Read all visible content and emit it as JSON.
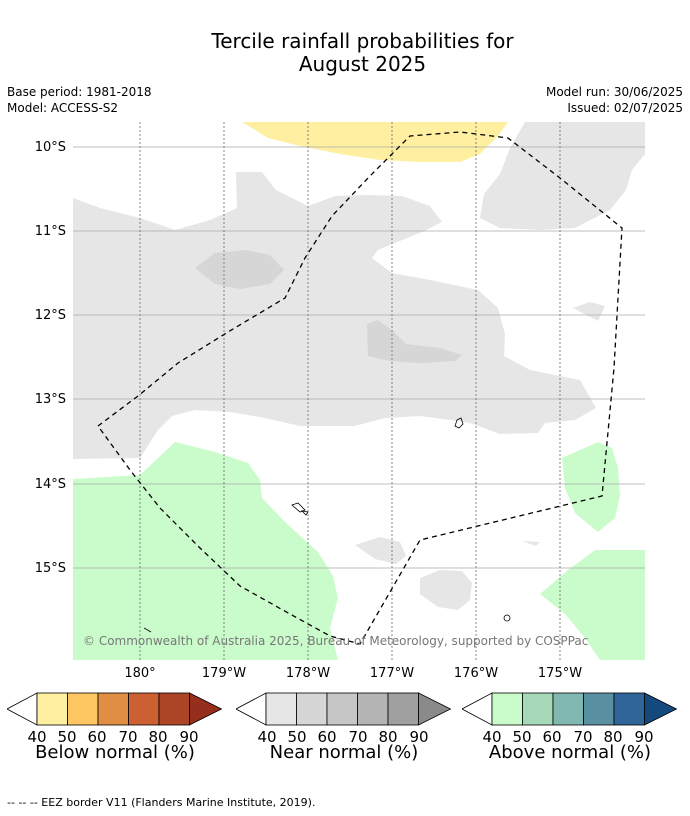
{
  "header": {
    "title_line1": "Tercile rainfall probabilities for",
    "title_line2": "August 2025",
    "base_period": "Base period: 1981-2018",
    "model": "Model: ACCESS-S2",
    "model_run": "Model run: 30/06/2025",
    "issued": "Issued: 02/07/2025"
  },
  "map": {
    "lat_labels": [
      "10°S",
      "11°S",
      "12°S",
      "13°S",
      "14°S",
      "15°S"
    ],
    "lon_labels": [
      "180°",
      "179°W",
      "178°W",
      "177°W",
      "176°W",
      "175°W"
    ],
    "copyright": "© Commonwealth of Australia 2025, Bureau of Meteorology, supported by COSPPac"
  },
  "legends": [
    {
      "title": "Below normal (%)",
      "ticks": [
        "40",
        "50",
        "60",
        "70",
        "80",
        "90"
      ],
      "colors": [
        "#fef0a0",
        "#fec762",
        "#e08e44",
        "#cc6033",
        "#ad4527",
        "#962e1d"
      ]
    },
    {
      "title": "Near normal (%)",
      "ticks": [
        "40",
        "50",
        "60",
        "70",
        "80",
        "90"
      ],
      "colors": [
        "#e6e6e6",
        "#d6d6d6",
        "#c6c6c6",
        "#b4b4b4",
        "#a0a0a0",
        "#8a8a8a"
      ]
    },
    {
      "title": "Above normal (%)",
      "ticks": [
        "40",
        "50",
        "60",
        "70",
        "80",
        "90"
      ],
      "colors": [
        "#cafccb",
        "#a6d9b8",
        "#80b7b0",
        "#5991a3",
        "#2f6698",
        "#13497c"
      ]
    }
  ],
  "footer": "--  --  -- EEZ border V11 (Flanders Marine Institute, 2019).",
  "colors": {
    "near_normal_40": "#e6e6e6",
    "near_normal_50": "#d6d6d6",
    "below_normal_40": "#fef0a0",
    "above_normal_40": "#cafccb"
  }
}
